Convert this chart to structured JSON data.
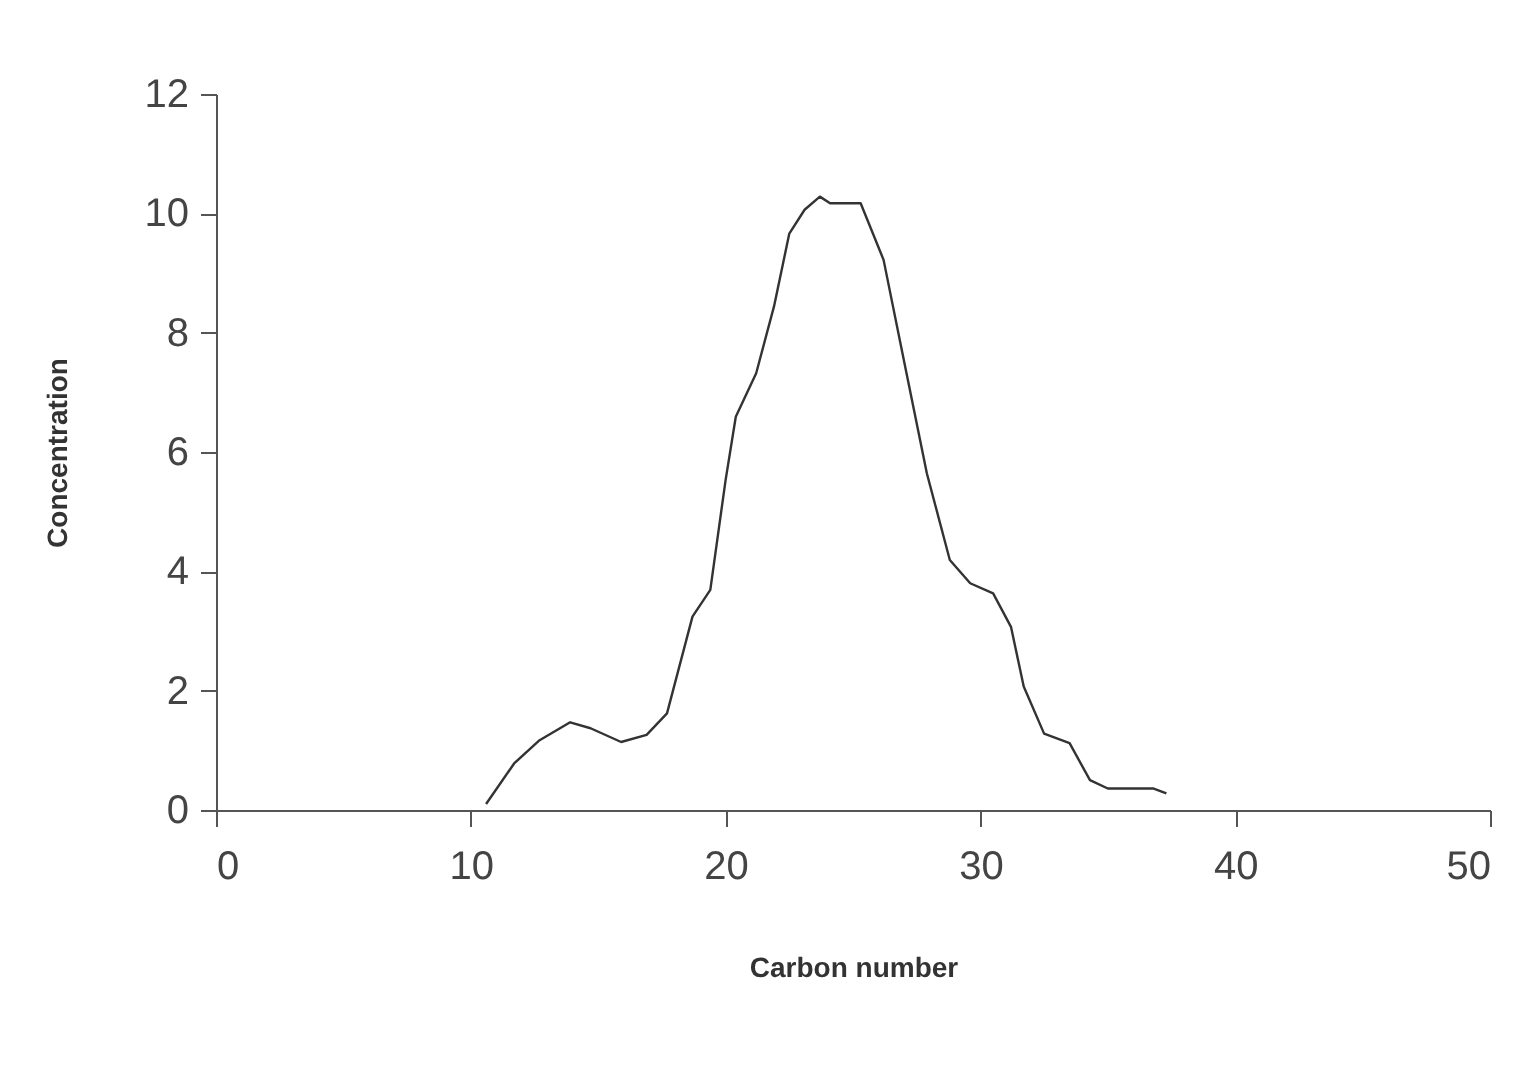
{
  "chart_data": {
    "type": "line",
    "xlabel": "Carbon number",
    "ylabel": "Concentration",
    "x": [
      10.6,
      11.7,
      12.7,
      13.9,
      14.7,
      15.9,
      16.9,
      17.7,
      18.7,
      19.4,
      20.0,
      20.4,
      21.2,
      21.9,
      22.5,
      23.1,
      23.7,
      24.1,
      25.3,
      26.2,
      27.1,
      27.9,
      28.8,
      29.6,
      30.5,
      31.2,
      31.7,
      32.5,
      33.5,
      34.3,
      35.0,
      36.8,
      37.3
    ],
    "series": [
      {
        "color": "#333333",
        "values": [
          0.1,
          0.78,
          1.17,
          1.47,
          1.37,
          1.14,
          1.26,
          1.62,
          3.24,
          3.69,
          5.53,
          6.59,
          7.32,
          8.44,
          9.66,
          10.06,
          10.28,
          10.17,
          10.17,
          9.22,
          7.32,
          5.64,
          4.19,
          3.8,
          3.63,
          3.07,
          2.07,
          1.28,
          1.12,
          0.5,
          0.36,
          0.36,
          0.28
        ]
      }
    ],
    "xlim": [
      0,
      50
    ],
    "xticks": [
      0,
      10,
      20,
      30,
      40,
      50
    ],
    "ylim": [
      0,
      12
    ],
    "yticks": [
      0,
      2,
      4,
      6,
      8,
      10,
      12
    ],
    "grid": false,
    "legend": false,
    "marker": "none",
    "line_style": "solid"
  }
}
